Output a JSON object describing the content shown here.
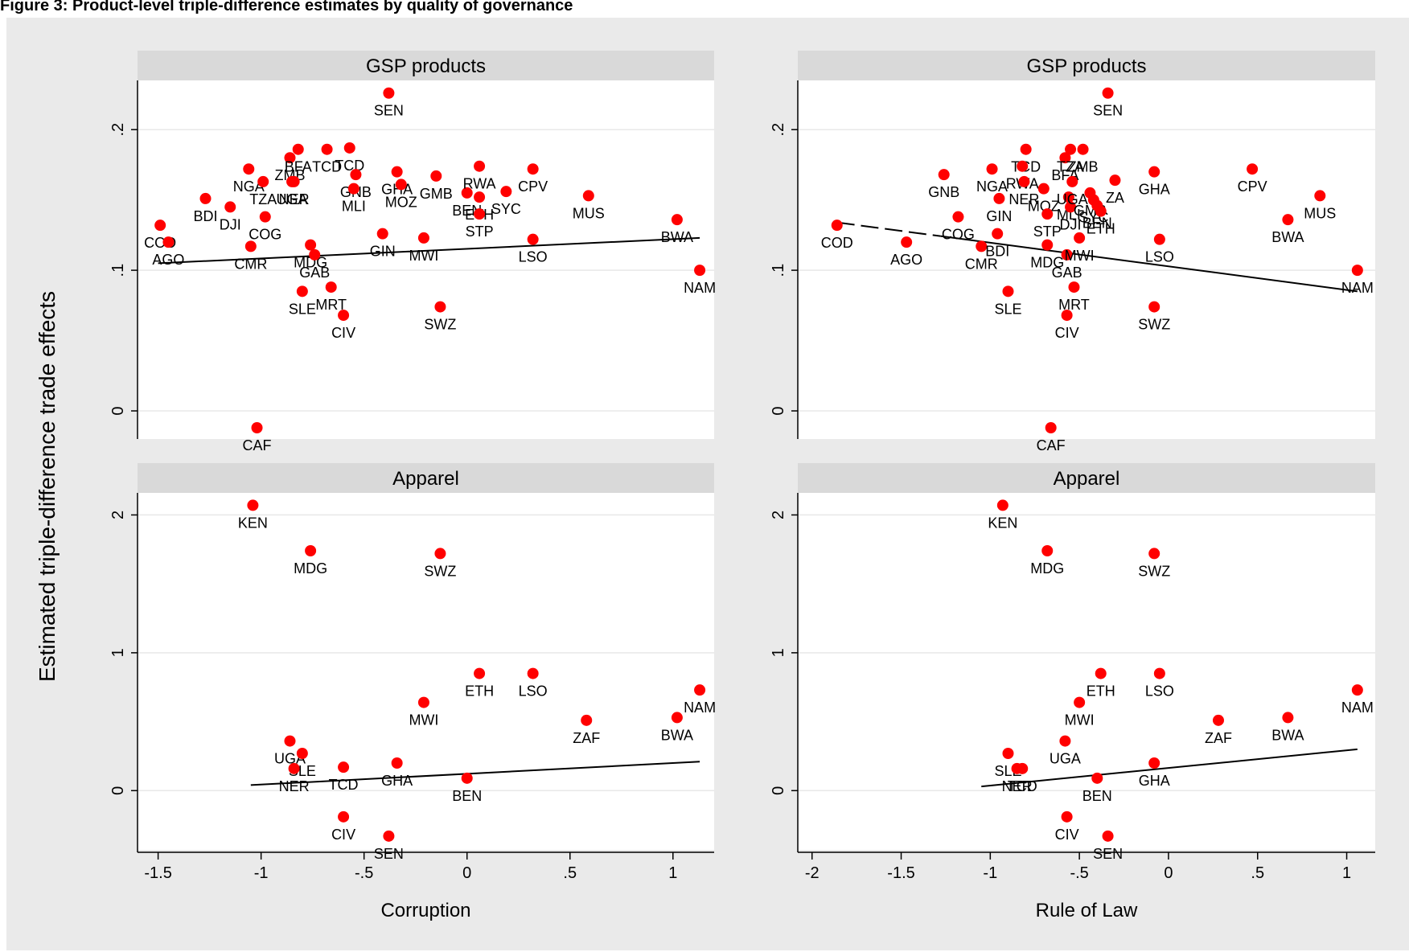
{
  "figure_title": "Figure 3: Product-level triple-difference estimates by quality of governance",
  "ylabel": "Estimated triple-difference trade effects",
  "colors": {
    "marker": "#ff0000",
    "strip": "#d9d9d9",
    "grid": "#e8e8e8",
    "background": "#eaeaea",
    "fit": "#000000"
  },
  "chart_data": [
    {
      "type": "scatter",
      "panel": "top-left",
      "strip_title": "GSP products",
      "xlabel": "",
      "xlim": [
        -1.6,
        1.2
      ],
      "ylim": [
        -0.02,
        0.235
      ],
      "xticks": [
        -1.5,
        -1,
        -0.5,
        0,
        0.5,
        1
      ],
      "xticklabels": [
        "-1.5",
        "-1",
        "-.5",
        "0",
        ".5",
        "1"
      ],
      "show_xticks": false,
      "yticks": [
        0,
        0.1,
        0.2
      ],
      "yticklabels": [
        "0",
        ".1",
        ".2"
      ],
      "fit": {
        "x": [
          -1.5,
          1.13
        ],
        "y": [
          0.105,
          0.123
        ],
        "dashed_to": null
      },
      "points": [
        {
          "label": "COD",
          "x": -1.49,
          "y": 0.132
        },
        {
          "label": "AGO",
          "x": -1.45,
          "y": 0.12
        },
        {
          "label": "BDI",
          "x": -1.27,
          "y": 0.151
        },
        {
          "label": "DJI",
          "x": -1.15,
          "y": 0.145
        },
        {
          "label": "NGA",
          "x": -1.06,
          "y": 0.172
        },
        {
          "label": "CMR",
          "x": -1.05,
          "y": 0.117
        },
        {
          "label": "CAF",
          "x": -1.02,
          "y": -0.012
        },
        {
          "label": "TZA",
          "x": -0.99,
          "y": 0.163
        },
        {
          "label": "COG",
          "x": -0.98,
          "y": 0.138
        },
        {
          "label": "ZMB",
          "x": -0.86,
          "y": 0.18
        },
        {
          "label": "UGA",
          "x": -0.85,
          "y": 0.163
        },
        {
          "label": "NER",
          "x": -0.84,
          "y": 0.163
        },
        {
          "label": "BFA",
          "x": -0.82,
          "y": 0.186
        },
        {
          "label": "SLE",
          "x": -0.8,
          "y": 0.085
        },
        {
          "label": "MDG",
          "x": -0.76,
          "y": 0.118
        },
        {
          "label": "GAB",
          "x": -0.74,
          "y": 0.111
        },
        {
          "label": "TCD",
          "x": -0.68,
          "y": 0.186
        },
        {
          "label": "MRT",
          "x": -0.66,
          "y": 0.088
        },
        {
          "label": "CIV",
          "x": -0.6,
          "y": 0.068
        },
        {
          "label": "TCD",
          "x": -0.57,
          "y": 0.187
        },
        {
          "label": "GNB",
          "x": -0.54,
          "y": 0.168
        },
        {
          "label": "MLI",
          "x": -0.55,
          "y": 0.158
        },
        {
          "label": "GIN",
          "x": -0.41,
          "y": 0.126
        },
        {
          "label": "SEN",
          "x": -0.38,
          "y": 0.226
        },
        {
          "label": "GHA",
          "x": -0.34,
          "y": 0.17
        },
        {
          "label": "MOZ",
          "x": -0.32,
          "y": 0.161
        },
        {
          "label": "MWI",
          "x": -0.21,
          "y": 0.123
        },
        {
          "label": "SWZ",
          "x": -0.13,
          "y": 0.074
        },
        {
          "label": "GMB",
          "x": -0.15,
          "y": 0.167
        },
        {
          "label": "BEN",
          "x": 0.0,
          "y": 0.155
        },
        {
          "label": "RWA",
          "x": 0.06,
          "y": 0.174
        },
        {
          "label": "ETH",
          "x": 0.06,
          "y": 0.152
        },
        {
          "label": "STP",
          "x": 0.06,
          "y": 0.14
        },
        {
          "label": "SYC",
          "x": 0.19,
          "y": 0.156
        },
        {
          "label": "LSO",
          "x": 0.32,
          "y": 0.122
        },
        {
          "label": "CPV",
          "x": 0.32,
          "y": 0.172
        },
        {
          "label": "MUS",
          "x": 0.59,
          "y": 0.153
        },
        {
          "label": "BWA",
          "x": 1.02,
          "y": 0.136
        },
        {
          "label": "NAM",
          "x": 1.13,
          "y": 0.1
        }
      ]
    },
    {
      "type": "scatter",
      "panel": "top-right",
      "strip_title": "GSP products",
      "xlabel": "",
      "xlim": [
        -2.08,
        1.16
      ],
      "ylim": [
        -0.02,
        0.235
      ],
      "xticks": [
        -2,
        -1.5,
        -1,
        -0.5,
        0,
        0.5,
        1
      ],
      "xticklabels": [
        "-2",
        "-1.5",
        "-1",
        "-.5",
        "0",
        ".5",
        "1"
      ],
      "show_xticks": false,
      "yticks": [
        0,
        0.1,
        0.2
      ],
      "yticklabels": [
        "0",
        ".1",
        ".2"
      ],
      "fit": {
        "x": [
          -1.86,
          1.06
        ],
        "y": [
          0.134,
          0.085
        ],
        "dashed_to": -1.28
      },
      "points": [
        {
          "label": "COD",
          "x": -1.86,
          "y": 0.132
        },
        {
          "label": "AGO",
          "x": -1.47,
          "y": 0.12
        },
        {
          "label": "GNB",
          "x": -1.26,
          "y": 0.168
        },
        {
          "label": "COG",
          "x": -1.18,
          "y": 0.138
        },
        {
          "label": "CMR",
          "x": -1.05,
          "y": 0.117
        },
        {
          "label": "NGA",
          "x": -0.99,
          "y": 0.172
        },
        {
          "label": "BDI",
          "x": -0.96,
          "y": 0.126
        },
        {
          "label": "GIN",
          "x": -0.95,
          "y": 0.151
        },
        {
          "label": "SLE",
          "x": -0.9,
          "y": 0.085
        },
        {
          "label": "TCD",
          "x": -0.8,
          "y": 0.186
        },
        {
          "label": "RWA",
          "x": -0.82,
          "y": 0.174
        },
        {
          "label": "NER",
          "x": -0.81,
          "y": 0.163
        },
        {
          "label": "MOZ",
          "x": -0.7,
          "y": 0.158
        },
        {
          "label": "STP",
          "x": -0.68,
          "y": 0.14
        },
        {
          "label": "MDG",
          "x": -0.68,
          "y": 0.118
        },
        {
          "label": "CAF",
          "x": -0.66,
          "y": -0.012
        },
        {
          "label": "BFA",
          "x": -0.58,
          "y": 0.18
        },
        {
          "label": "MLI",
          "x": -0.56,
          "y": 0.152
        },
        {
          "label": "DJI",
          "x": -0.55,
          "y": 0.145
        },
        {
          "label": "UGA",
          "x": -0.54,
          "y": 0.163
        },
        {
          "label": "GAB",
          "x": -0.57,
          "y": 0.111
        },
        {
          "label": "CIV",
          "x": -0.57,
          "y": 0.068
        },
        {
          "label": "TZA",
          "x": -0.55,
          "y": 0.186
        },
        {
          "label": "MRT",
          "x": -0.53,
          "y": 0.088
        },
        {
          "label": "ZMB",
          "x": -0.48,
          "y": 0.186
        },
        {
          "label": "MWI",
          "x": -0.5,
          "y": 0.123
        },
        {
          "label": "SEN",
          "x": -0.34,
          "y": 0.226
        },
        {
          "label": "GMB",
          "x": -0.44,
          "y": 0.155
        },
        {
          "label": "SYC",
          "x": -0.42,
          "y": 0.15
        },
        {
          "label": "BEN",
          "x": -0.4,
          "y": 0.146
        },
        {
          "label": "ETH",
          "x": -0.38,
          "y": 0.142
        },
        {
          "label": "ZA",
          "x": -0.3,
          "y": 0.164
        },
        {
          "label": "SWZ",
          "x": -0.08,
          "y": 0.074
        },
        {
          "label": "GHA",
          "x": -0.08,
          "y": 0.17
        },
        {
          "label": "LSO",
          "x": -0.05,
          "y": 0.122
        },
        {
          "label": "CPV",
          "x": 0.47,
          "y": 0.172
        },
        {
          "label": "BWA",
          "x": 0.67,
          "y": 0.136
        },
        {
          "label": "MUS",
          "x": 0.85,
          "y": 0.153
        },
        {
          "label": "NAM",
          "x": 1.06,
          "y": 0.1
        }
      ]
    },
    {
      "type": "scatter",
      "panel": "bottom-left",
      "strip_title": "Apparel",
      "xlabel": "Corruption",
      "xlim": [
        -1.6,
        1.2
      ],
      "ylim": [
        -0.43,
        2.16
      ],
      "xticks": [
        -1.5,
        -1,
        -0.5,
        0,
        0.5,
        1
      ],
      "xticklabels": [
        "-1.5",
        "-1",
        "-.5",
        "0",
        ".5",
        "1"
      ],
      "show_xticks": true,
      "yticks": [
        0,
        1,
        2
      ],
      "yticklabels": [
        "0",
        "1",
        "2"
      ],
      "fit": {
        "x": [
          -1.05,
          1.13
        ],
        "y": [
          0.04,
          0.21
        ],
        "dashed_to": null
      },
      "points": [
        {
          "label": "KEN",
          "x": -1.04,
          "y": 2.07
        },
        {
          "label": "UGA",
          "x": -0.86,
          "y": 0.36
        },
        {
          "label": "SLE",
          "x": -0.8,
          "y": 0.27
        },
        {
          "label": "NER",
          "x": -0.84,
          "y": 0.16
        },
        {
          "label": "MDG",
          "x": -0.76,
          "y": 1.74
        },
        {
          "label": "TCD",
          "x": -0.6,
          "y": 0.17
        },
        {
          "label": "CIV",
          "x": -0.6,
          "y": -0.19
        },
        {
          "label": "SEN",
          "x": -0.38,
          "y": -0.33
        },
        {
          "label": "GHA",
          "x": -0.34,
          "y": 0.2
        },
        {
          "label": "MWI",
          "x": -0.21,
          "y": 0.64
        },
        {
          "label": "SWZ",
          "x": -0.13,
          "y": 1.72
        },
        {
          "label": "BEN",
          "x": 0.0,
          "y": 0.09
        },
        {
          "label": "ETH",
          "x": 0.06,
          "y": 0.85
        },
        {
          "label": "LSO",
          "x": 0.32,
          "y": 0.85
        },
        {
          "label": "ZAF",
          "x": 0.58,
          "y": 0.51
        },
        {
          "label": "BWA",
          "x": 1.02,
          "y": 0.53
        },
        {
          "label": "NAM",
          "x": 1.13,
          "y": 0.73
        }
      ]
    },
    {
      "type": "scatter",
      "panel": "bottom-right",
      "strip_title": "Apparel",
      "xlabel": "Rule of Law",
      "xlim": [
        -2.08,
        1.16
      ],
      "ylim": [
        -0.43,
        2.16
      ],
      "xticks": [
        -2,
        -1.5,
        -1,
        -0.5,
        0,
        0.5,
        1
      ],
      "xticklabels": [
        "-2",
        "-1.5",
        "-1",
        "-.5",
        "0",
        ".5",
        "1"
      ],
      "show_xticks": true,
      "yticks": [
        0,
        1,
        2
      ],
      "yticklabels": [
        "0",
        "1",
        "2"
      ],
      "fit": {
        "x": [
          -1.05,
          1.06
        ],
        "y": [
          0.03,
          0.3
        ],
        "dashed_to": null
      },
      "points": [
        {
          "label": "KEN",
          "x": -0.93,
          "y": 2.07
        },
        {
          "label": "SLE",
          "x": -0.9,
          "y": 0.27
        },
        {
          "label": "NER",
          "x": -0.85,
          "y": 0.16
        },
        {
          "label": "TCD",
          "x": -0.82,
          "y": 0.16
        },
        {
          "label": "MDG",
          "x": -0.68,
          "y": 1.74
        },
        {
          "label": "UGA",
          "x": -0.58,
          "y": 0.36
        },
        {
          "label": "CIV",
          "x": -0.57,
          "y": -0.19
        },
        {
          "label": "MWI",
          "x": -0.5,
          "y": 0.64
        },
        {
          "label": "ETH",
          "x": -0.38,
          "y": 0.85
        },
        {
          "label": "BEN",
          "x": -0.4,
          "y": 0.09
        },
        {
          "label": "SEN",
          "x": -0.34,
          "y": -0.33
        },
        {
          "label": "SWZ",
          "x": -0.08,
          "y": 1.72
        },
        {
          "label": "GHA",
          "x": -0.08,
          "y": 0.2
        },
        {
          "label": "LSO",
          "x": -0.05,
          "y": 0.85
        },
        {
          "label": "ZAF",
          "x": 0.28,
          "y": 0.51
        },
        {
          "label": "BWA",
          "x": 0.67,
          "y": 0.53
        },
        {
          "label": "NAM",
          "x": 1.06,
          "y": 0.73
        }
      ]
    }
  ]
}
